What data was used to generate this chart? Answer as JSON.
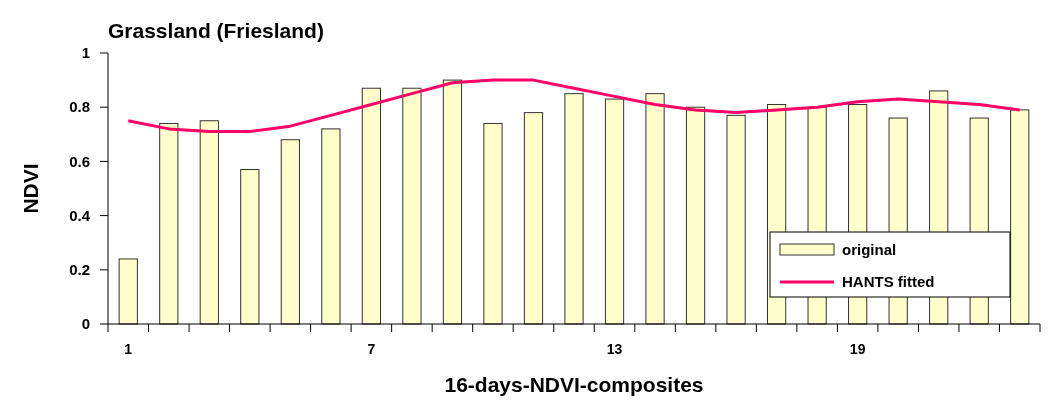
{
  "chart_data": {
    "type": "bar",
    "title": "Grassland (Friesland)",
    "xlabel": "16-days-NDVI-composites",
    "ylabel": "NDVI",
    "categories": [
      "1",
      null,
      null,
      null,
      null,
      null,
      "7",
      null,
      null,
      null,
      null,
      null,
      "13",
      null,
      null,
      null,
      null,
      null,
      "19",
      null,
      null,
      null,
      null
    ],
    "series": [
      {
        "name": "original",
        "color": "#ffffcc",
        "values": [
          0.24,
          0.74,
          0.75,
          0.57,
          0.68,
          0.72,
          0.87,
          0.87,
          0.9,
          0.74,
          0.78,
          0.85,
          0.83,
          0.85,
          0.8,
          0.77,
          0.81,
          0.8,
          0.81,
          0.76,
          0.86,
          0.76,
          0.79
        ]
      },
      {
        "name": "HANTS fitted",
        "type": "line",
        "color": "#ff0066",
        "values": [
          0.75,
          0.72,
          0.71,
          0.71,
          0.73,
          0.77,
          0.81,
          0.85,
          0.89,
          0.9,
          0.9,
          0.87,
          0.84,
          0.81,
          0.79,
          0.78,
          0.79,
          0.8,
          0.82,
          0.83,
          0.82,
          0.81,
          0.79
        ]
      }
    ],
    "ylim": [
      0,
      1
    ],
    "yticks": [
      0,
      0.2,
      0.4,
      0.6,
      0.8,
      1
    ],
    "grid": false,
    "legend": "bottom right"
  }
}
